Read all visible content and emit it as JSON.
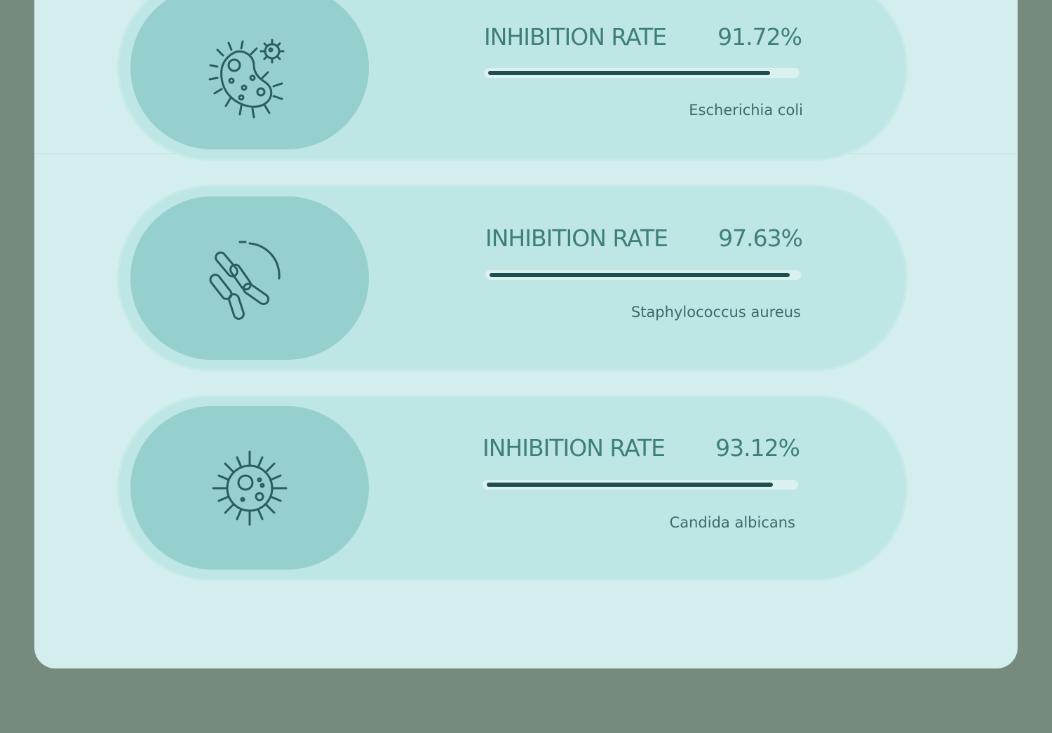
{
  "cards": [
    {
      "icon": "bacteria-colony-icon",
      "rate_label": "INHIBITION RATE",
      "rate_value": "91.72%",
      "rate_fraction": 0.9172,
      "organism": "Escherichia coli"
    },
    {
      "icon": "rod-bacteria-icon",
      "rate_label": "INHIBITION RATE",
      "rate_value": "97.63%",
      "rate_fraction": 0.9763,
      "organism": "Staphylococcus aureus"
    },
    {
      "icon": "virus-cell-icon",
      "rate_label": "INHIBITION RATE",
      "rate_value": "93.12%",
      "rate_fraction": 0.9312,
      "organism": "Candida albicans"
    }
  ],
  "colors": {
    "background": "#768b7e",
    "panel": "#d3eeed",
    "card": "#bee6e5",
    "icon_pill": "#95d0cf",
    "bar": "#1e4e4f",
    "text": "#3e7f79"
  }
}
